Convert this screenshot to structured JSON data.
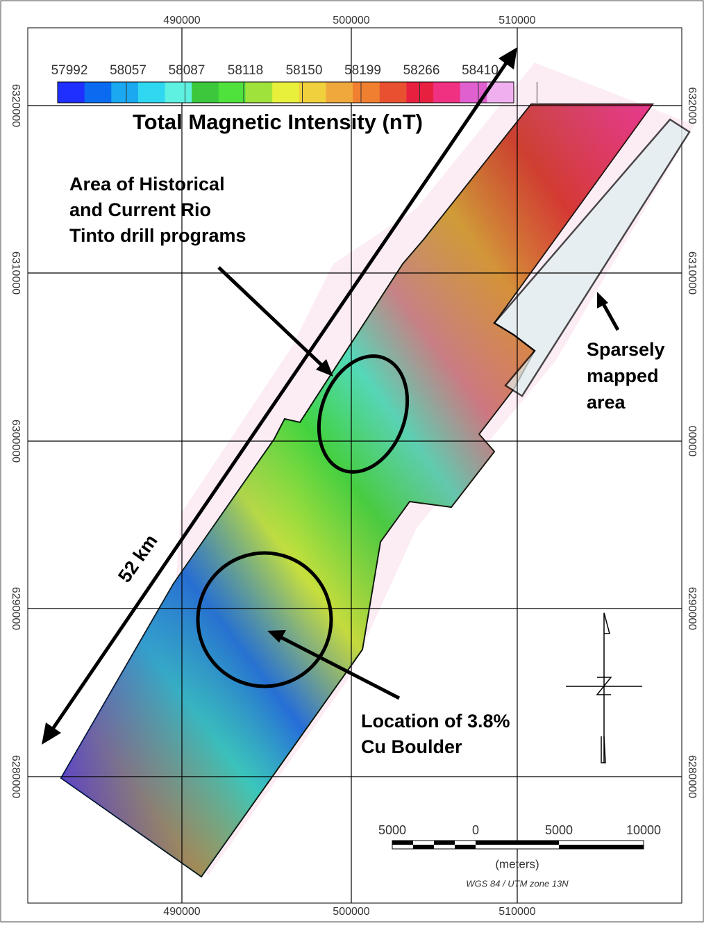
{
  "map": {
    "grid": {
      "top_labels": [
        "490000",
        "500000",
        "510000"
      ],
      "bottom_labels": [
        "490000",
        "500000",
        "510000"
      ],
      "left_labels": [
        "6320000",
        "6310000",
        "6300000",
        "6290000",
        "6280000"
      ],
      "right_labels": [
        "632000",
        "6310000",
        "00000",
        "6290000",
        "6280000"
      ]
    },
    "legend": {
      "values": [
        "57992",
        "58057",
        "58087",
        "58118",
        "58150",
        "58199",
        "58266",
        "58410"
      ],
      "title": "Total Magnetic Intensity (nT)"
    },
    "annotations": {
      "drill_area": [
        "Area of Historical",
        "and Current Rio",
        "Tinto drill programs"
      ],
      "sparse": [
        "Sparsely",
        "mapped",
        "area"
      ],
      "length": "52 km",
      "boulder": [
        "Location of 3.8%",
        "Cu Boulder"
      ]
    },
    "scale_bar": {
      "labels": [
        "5000",
        "0",
        "5000",
        "10000"
      ],
      "unit": "(meters)",
      "projection": "WGS 84 / UTM zone 13N"
    }
  }
}
